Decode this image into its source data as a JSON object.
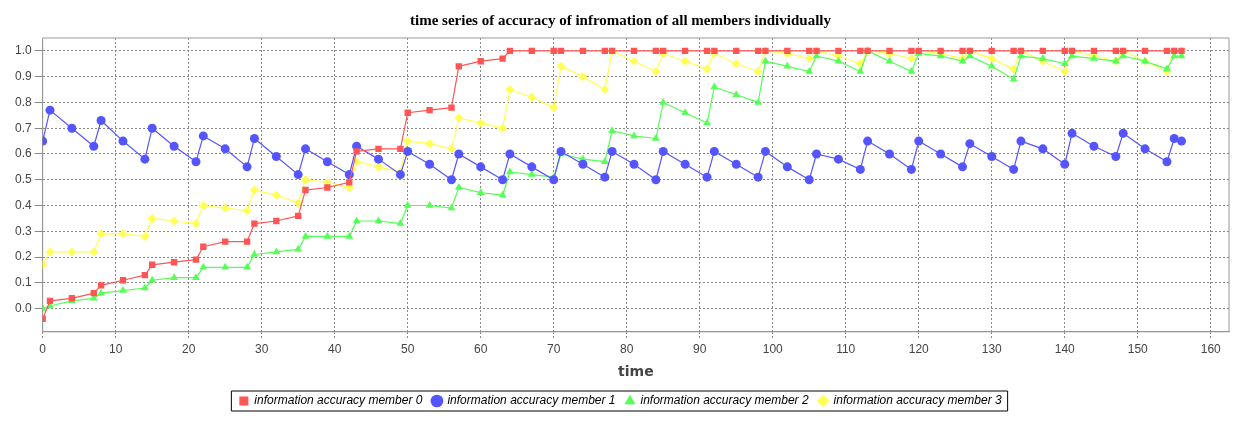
{
  "chart_data": {
    "type": "line",
    "title": "time series of accuracy of infromation of all members individually",
    "xlabel": "time",
    "x": [
      0,
      1,
      4,
      7,
      8,
      11,
      14,
      15,
      18,
      21,
      22,
      25,
      28,
      29,
      32,
      35,
      36,
      39,
      42,
      43,
      46,
      49,
      50,
      53,
      56,
      57,
      60,
      63,
      64,
      67,
      70,
      71,
      74,
      77,
      78,
      81,
      84,
      85,
      88,
      91,
      92,
      95,
      98,
      99,
      102,
      105,
      106,
      109,
      112,
      113,
      116,
      119,
      120,
      123,
      126,
      127,
      130,
      133,
      134,
      137,
      140,
      141,
      144,
      147,
      148,
      151,
      154,
      155,
      156
    ],
    "series": [
      {
        "name": "information accuracy member 0",
        "color": "#ff5555",
        "marker": "square",
        "values": [
          -0.04,
          0.03,
          0.04,
          0.06,
          0.09,
          0.11,
          0.13,
          0.17,
          0.18,
          0.19,
          0.24,
          0.26,
          0.26,
          0.33,
          0.34,
          0.36,
          0.46,
          0.47,
          0.49,
          0.61,
          0.62,
          0.62,
          0.76,
          0.77,
          0.78,
          0.94,
          0.96,
          0.97,
          1.0,
          1.0,
          1.0,
          1.0,
          1.0,
          1.0,
          1.0,
          1.0,
          1.0,
          1.0,
          1.0,
          1.0,
          1.0,
          1.0,
          1.0,
          1.0,
          1.0,
          1.0,
          1.0,
          1.0,
          1.0,
          1.0,
          1.0,
          1.0,
          1.0,
          1.0,
          1.0,
          1.0,
          1.0,
          1.0,
          1.0,
          1.0,
          1.0,
          1.0,
          1.0,
          1.0,
          1.0,
          1.0,
          1.0,
          1.0,
          1.0
        ]
      },
      {
        "name": "information accuracy member 1",
        "color": "#5555ff",
        "marker": "circle",
        "values": [
          0.65,
          0.77,
          0.7,
          0.63,
          0.73,
          0.65,
          0.58,
          0.7,
          0.63,
          0.57,
          0.67,
          0.62,
          0.55,
          0.66,
          0.59,
          0.52,
          0.62,
          0.57,
          0.52,
          0.63,
          0.58,
          0.52,
          0.61,
          0.56,
          0.5,
          0.6,
          0.55,
          0.5,
          0.6,
          0.55,
          0.5,
          0.61,
          0.56,
          0.51,
          0.61,
          0.56,
          0.5,
          0.61,
          0.56,
          0.51,
          0.61,
          0.56,
          0.51,
          0.61,
          0.55,
          0.5,
          0.6,
          0.58,
          0.54,
          0.65,
          0.6,
          0.54,
          0.65,
          0.6,
          0.55,
          0.64,
          0.59,
          0.54,
          0.65,
          0.62,
          0.56,
          0.68,
          0.63,
          0.59,
          0.68,
          0.62,
          0.57,
          0.66,
          0.65
        ]
      },
      {
        "name": "information accuracy member 2",
        "color": "#55ff55",
        "marker": "triangle",
        "values": [
          0.0,
          0.01,
          0.03,
          0.04,
          0.06,
          0.07,
          0.08,
          0.11,
          0.12,
          0.12,
          0.16,
          0.16,
          0.16,
          0.21,
          0.22,
          0.23,
          0.28,
          0.28,
          0.28,
          0.34,
          0.34,
          0.33,
          0.4,
          0.4,
          0.39,
          0.47,
          0.45,
          0.44,
          0.53,
          0.52,
          0.51,
          0.6,
          0.58,
          0.57,
          0.69,
          0.67,
          0.66,
          0.8,
          0.76,
          0.72,
          0.86,
          0.83,
          0.8,
          0.96,
          0.94,
          0.92,
          0.98,
          0.96,
          0.92,
          1.0,
          0.96,
          0.92,
          0.99,
          0.98,
          0.96,
          0.98,
          0.94,
          0.89,
          0.98,
          0.97,
          0.95,
          0.98,
          0.97,
          0.96,
          0.98,
          0.96,
          0.93,
          0.98,
          0.98
        ]
      },
      {
        "name": "information accuracy member 3",
        "color": "#ffff55",
        "marker": "diamond",
        "values": [
          0.17,
          0.22,
          0.22,
          0.22,
          0.29,
          0.29,
          0.28,
          0.35,
          0.34,
          0.33,
          0.4,
          0.39,
          0.38,
          0.46,
          0.44,
          0.41,
          0.5,
          0.49,
          0.47,
          0.57,
          0.55,
          0.53,
          0.65,
          0.64,
          0.62,
          0.74,
          0.72,
          0.7,
          0.85,
          0.82,
          0.78,
          0.94,
          0.9,
          0.85,
          1.0,
          0.96,
          0.92,
          0.99,
          0.96,
          0.93,
          0.99,
          0.95,
          0.92,
          1.0,
          0.99,
          0.97,
          1.0,
          0.98,
          0.95,
          1.0,
          0.99,
          0.97,
          1.0,
          0.99,
          0.97,
          1.0,
          0.97,
          0.93,
          1.0,
          0.96,
          0.92,
          1.0,
          0.98,
          0.96,
          1.0,
          0.96,
          0.92,
          1.0,
          1.0
        ]
      }
    ],
    "xlim": [
      0,
      162.5
    ],
    "xticks": [
      0,
      10,
      20,
      30,
      40,
      50,
      60,
      70,
      80,
      90,
      100,
      110,
      120,
      130,
      140,
      150,
      160
    ],
    "ylim": [
      -0.09,
      1.05
    ],
    "yticks": [
      {
        "value": 0,
        "label": "0.0"
      },
      {
        "value": 0.1,
        "label": "0.1"
      },
      {
        "value": 0.2,
        "label": "0.2"
      },
      {
        "value": 0.3,
        "label": "0.3"
      },
      {
        "value": 0.4,
        "label": "0.4"
      },
      {
        "value": 0.5,
        "label": "0.5"
      },
      {
        "value": 0.6,
        "label": "0.6"
      },
      {
        "value": 0.7,
        "label": "0.7"
      },
      {
        "value": 0.8,
        "label": "0.8"
      },
      {
        "value": 0.9,
        "label": "0.9"
      },
      {
        "value": 1.0,
        "label": "1.0"
      }
    ],
    "grid": true,
    "legend": "bottom",
    "line_style": "solid"
  }
}
